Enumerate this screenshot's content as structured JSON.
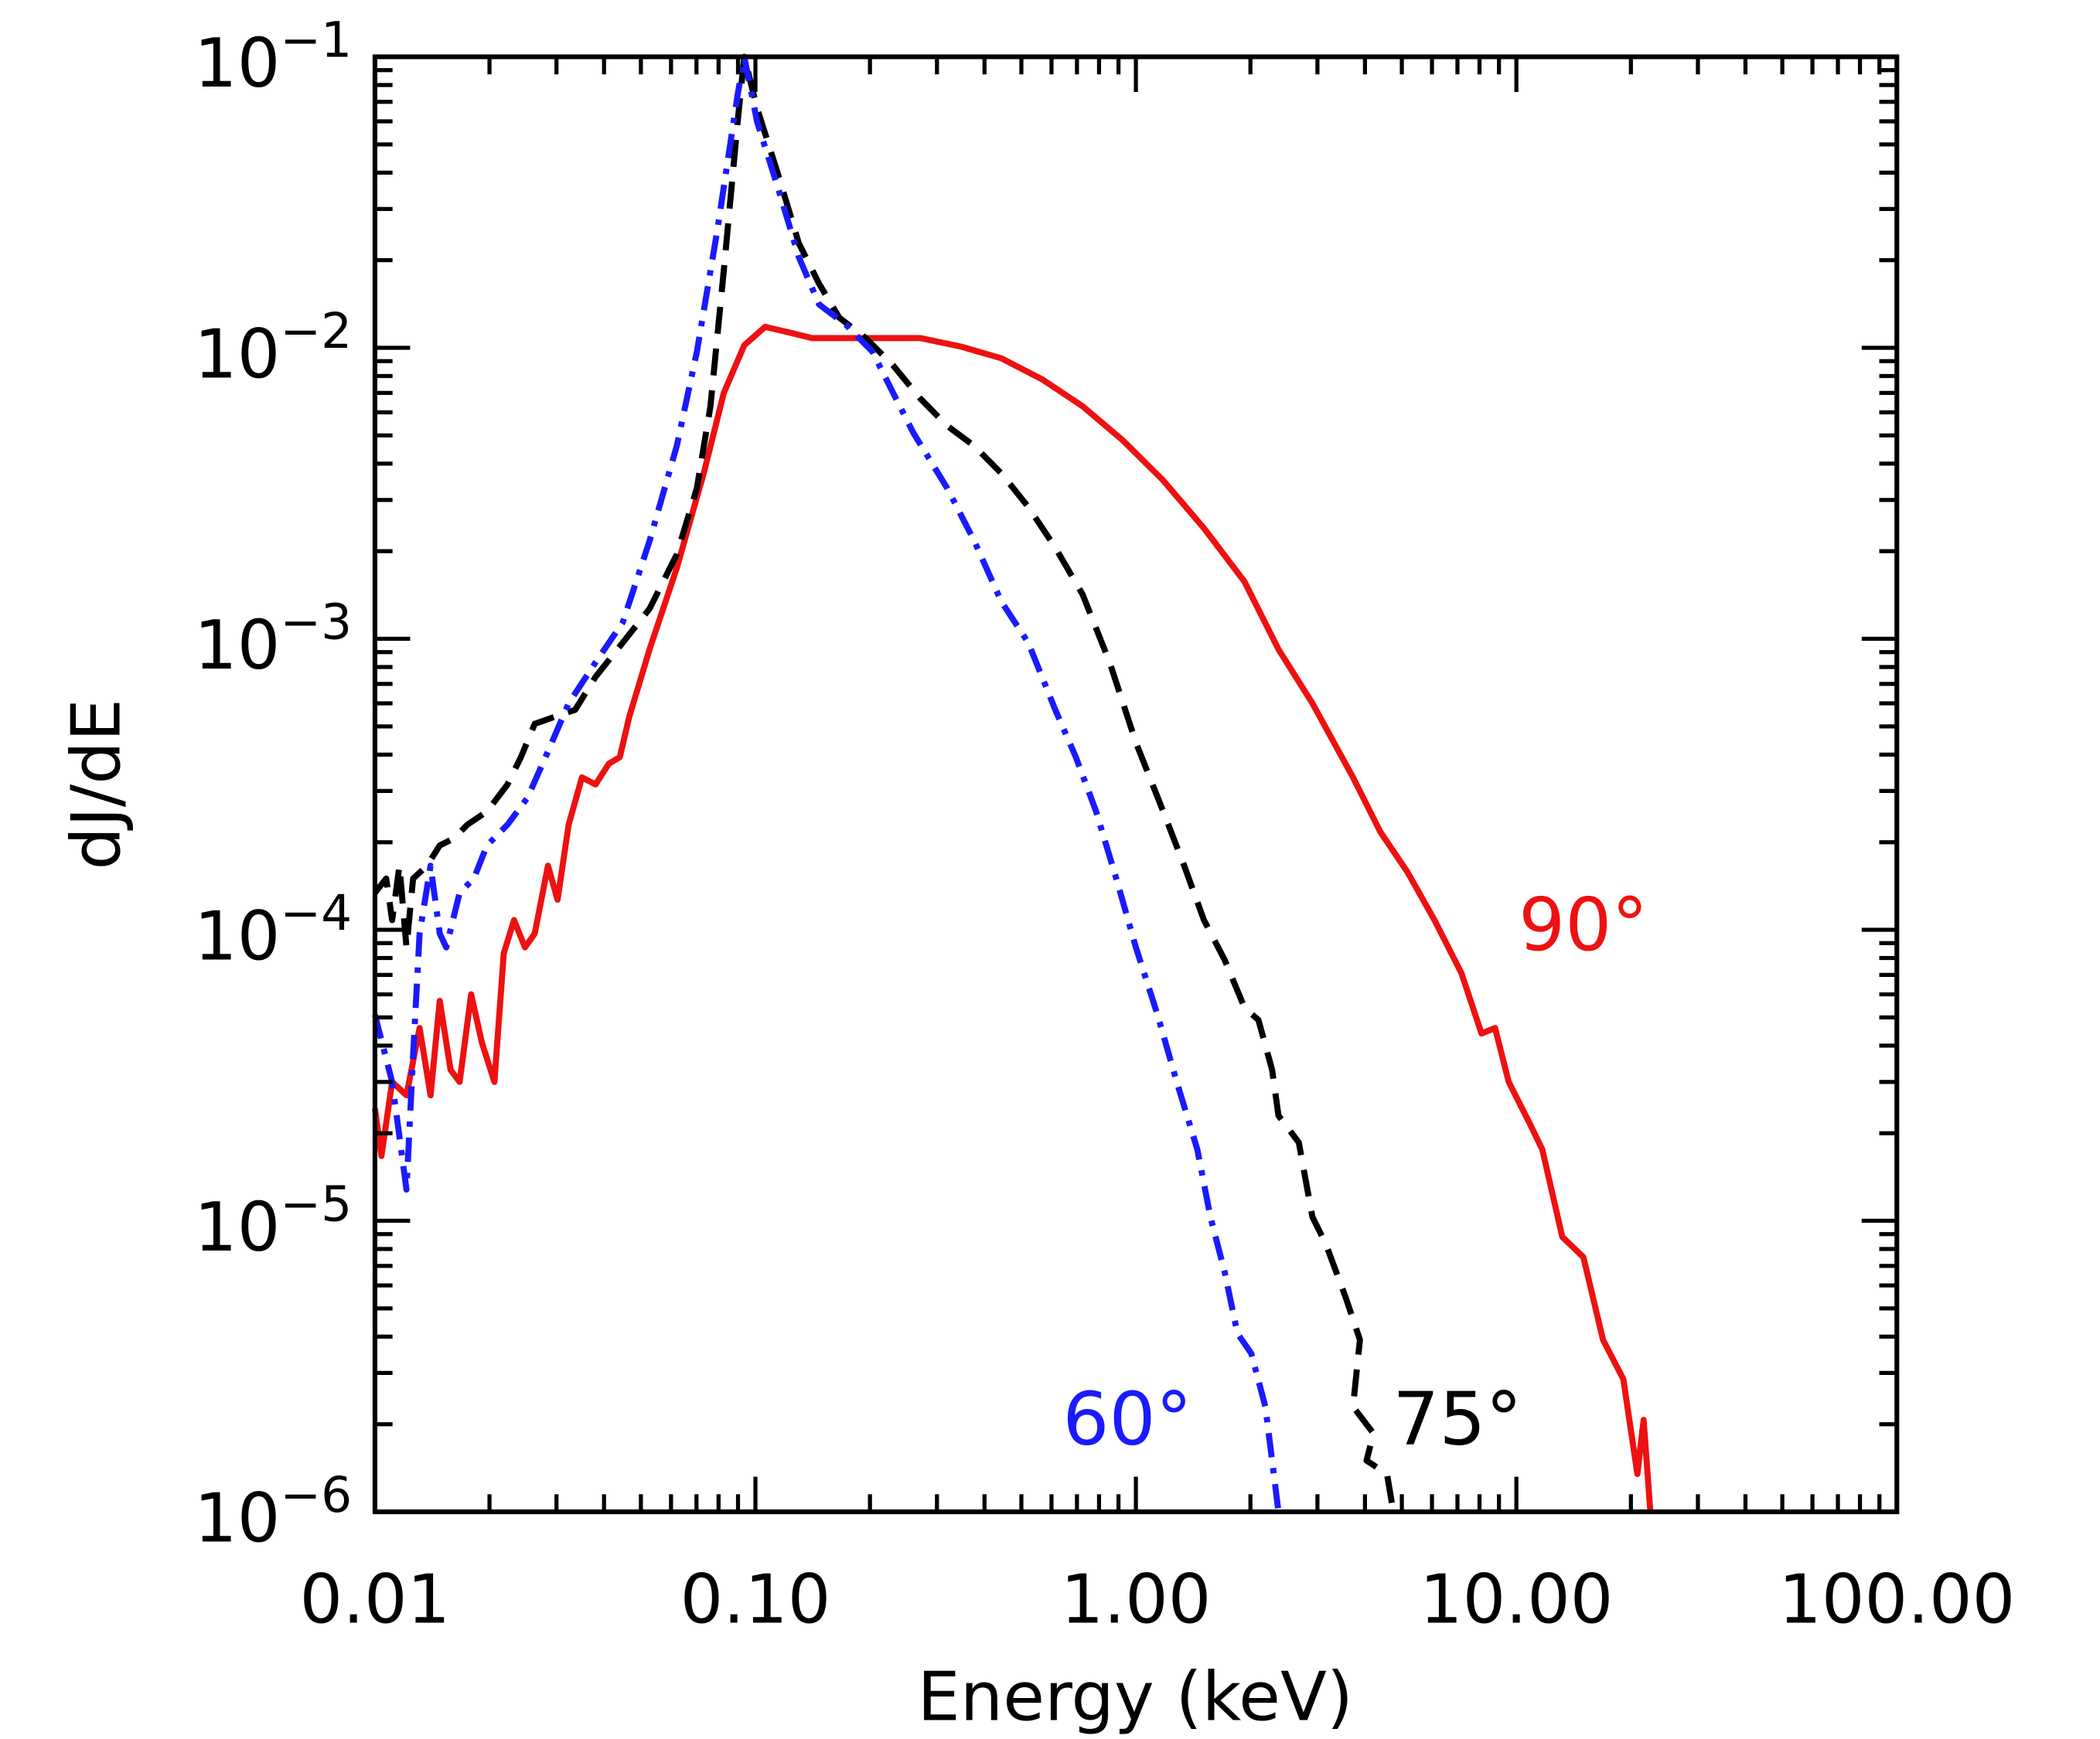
{
  "chart_data": {
    "type": "line",
    "title": "",
    "xlabel": "Energy (keV)",
    "ylabel": "dJ/dE",
    "xscale": "log",
    "yscale": "log",
    "xlim": [
      0.01,
      100
    ],
    "ylim": [
      1e-06,
      0.1
    ],
    "grid": false,
    "x_ticks": [
      0.01,
      0.1,
      1,
      10,
      100
    ],
    "x_tick_labels": [
      "0.01",
      "0.10",
      "1.00",
      "10.00",
      "100.00"
    ],
    "y_ticks": [
      0.1,
      0.01,
      0.001,
      0.0001,
      1e-05,
      1e-06
    ],
    "y_tick_labels": [
      {
        "base": "10",
        "exp": "−1"
      },
      {
        "base": "10",
        "exp": "−2"
      },
      {
        "base": "10",
        "exp": "−3"
      },
      {
        "base": "10",
        "exp": "−4"
      },
      {
        "base": "10",
        "exp": "−5"
      },
      {
        "base": "10",
        "exp": "−6"
      }
    ],
    "series": [
      {
        "name": "90°",
        "color": "#ee1111",
        "style": "solid",
        "x": [
          0.01,
          0.0104,
          0.0111,
          0.0121,
          0.0131,
          0.014,
          0.0148,
          0.0158,
          0.0167,
          0.0179,
          0.0191,
          0.0206,
          0.0218,
          0.0232,
          0.0248,
          0.0263,
          0.0285,
          0.0302,
          0.0323,
          0.035,
          0.038,
          0.0412,
          0.044,
          0.0466,
          0.0527,
          0.0621,
          0.0731,
          0.0826,
          0.0935,
          0.106,
          0.119,
          0.141,
          0.166,
          0.212,
          0.271,
          0.347,
          0.443,
          0.566,
          0.724,
          0.925,
          1.18,
          1.51,
          1.93,
          2.37,
          2.91,
          3.72,
          4.39,
          5.17,
          6.09,
          7.17,
          8.1,
          8.79,
          9.55,
          10.8,
          11.7,
          13.2,
          15.0,
          16.9,
          19.1,
          20.8,
          21.6,
          22.5
        ],
        "y": [
          2.43e-05,
          1.67e-05,
          3e-05,
          2.7e-05,
          4.6e-05,
          2.7e-05,
          5.7e-05,
          3.3e-05,
          3e-05,
          6e-05,
          4.1e-05,
          3e-05,
          8.3e-05,
          0.000108,
          8.7e-05,
          9.7e-05,
          0.000166,
          0.000127,
          0.00023,
          0.000334,
          0.000316,
          0.000372,
          0.000392,
          0.00054,
          0.00092,
          0.00175,
          0.0037,
          0.007,
          0.0102,
          0.0118,
          0.0114,
          0.0108,
          0.0108,
          0.0108,
          0.0108,
          0.0101,
          0.0092,
          0.0078,
          0.0063,
          0.0048,
          0.0035,
          0.0024,
          0.00157,
          0.00092,
          0.0006,
          0.000334,
          0.000217,
          0.000158,
          0.000108,
          7.1e-05,
          4.4e-05,
          4.6e-05,
          3e-05,
          2.18e-05,
          1.76e-05,
          8.8e-06,
          7.5e-06,
          3.9e-06,
          2.86e-06,
          1.35e-06,
          2.07e-06,
          1e-06
        ]
      },
      {
        "name": "75°",
        "color": "#000000",
        "style": "dashed",
        "x": [
          0.01,
          0.0107,
          0.0111,
          0.0116,
          0.0121,
          0.0126,
          0.0137,
          0.0148,
          0.0161,
          0.0175,
          0.0197,
          0.0223,
          0.0242,
          0.0263,
          0.0297,
          0.0336,
          0.038,
          0.0448,
          0.0527,
          0.0621,
          0.0702,
          0.0762,
          0.0826,
          0.0898,
          0.0935,
          0.101,
          0.115,
          0.13,
          0.147,
          0.166,
          0.195,
          0.23,
          0.271,
          0.319,
          0.376,
          0.443,
          0.521,
          0.614,
          0.724,
          0.853,
          1.0,
          1.18,
          1.34,
          1.51,
          1.71,
          1.93,
          2.1,
          2.28,
          2.37,
          2.68,
          2.91,
          3.16,
          3.57,
          3.88,
          3.72,
          4.21,
          4.04,
          4.57,
          4.75
        ],
        "y": [
          0.000134,
          0.00015,
          0.000108,
          0.000166,
          8.7e-05,
          0.00015,
          0.000166,
          0.000195,
          0.000206,
          0.00023,
          0.000255,
          0.000316,
          0.000392,
          0.00051,
          0.00054,
          0.00057,
          0.00074,
          0.00097,
          0.00127,
          0.00195,
          0.0033,
          0.0063,
          0.0185,
          0.0598,
          0.1,
          0.0665,
          0.039,
          0.0229,
          0.0166,
          0.0127,
          0.0108,
          0.0087,
          0.0067,
          0.0054,
          0.0046,
          0.0037,
          0.00284,
          0.00206,
          0.00142,
          0.00083,
          0.00044,
          0.000255,
          0.000166,
          0.000108,
          7.9e-05,
          5.4e-05,
          4.9e-05,
          3.3e-05,
          2.3e-05,
          1.86e-05,
          1.03e-05,
          8.3e-06,
          5.4e-06,
          3.9e-06,
          2.3e-06,
          1.86e-06,
          1.5e-06,
          1.35e-06,
          1e-06
        ]
      },
      {
        "name": "60°",
        "color": "#1a1aff",
        "style": "dashdot",
        "x": [
          0.01,
          0.0111,
          0.0121,
          0.0126,
          0.0131,
          0.014,
          0.0148,
          0.0154,
          0.0167,
          0.0182,
          0.0197,
          0.0223,
          0.0252,
          0.0285,
          0.0323,
          0.038,
          0.0448,
          0.0527,
          0.0621,
          0.0702,
          0.0794,
          0.0898,
          0.0935,
          0.101,
          0.115,
          0.13,
          0.147,
          0.173,
          0.203,
          0.23,
          0.26,
          0.319,
          0.376,
          0.443,
          0.521,
          0.614,
          0.695,
          0.786,
          0.888,
          1.0,
          1.14,
          1.28,
          1.45,
          1.57,
          1.71,
          1.85,
          2.01,
          2.19,
          2.37
        ],
        "y": [
          5.1e-05,
          3e-05,
          1.28e-05,
          3.7e-05,
          9.7e-05,
          0.000166,
          9.7e-05,
          8.7e-05,
          0.000134,
          0.00015,
          0.000195,
          0.00023,
          0.000285,
          0.00041,
          0.0006,
          0.00083,
          0.00114,
          0.00217,
          0.0046,
          0.0097,
          0.0254,
          0.074,
          0.1,
          0.0598,
          0.035,
          0.0205,
          0.0141,
          0.012,
          0.0097,
          0.007,
          0.0051,
          0.0033,
          0.00217,
          0.00134,
          0.00097,
          0.00057,
          0.000392,
          0.000255,
          0.00015,
          8.7e-05,
          5.1e-05,
          3e-05,
          1.76e-05,
          1.03e-05,
          6.7e-06,
          4.1e-06,
          3.5e-06,
          2.3e-06,
          1e-06
        ]
      }
    ],
    "annotations": [
      {
        "text": "90°",
        "color": "#ee1111",
        "x": 15,
        "y": 0.0001
      },
      {
        "text": "75°",
        "color": "#000000",
        "x": 7.0,
        "y": 2e-06
      },
      {
        "text": "60°",
        "color": "#1a1aff",
        "x": 0.95,
        "y": 2e-06
      }
    ]
  }
}
